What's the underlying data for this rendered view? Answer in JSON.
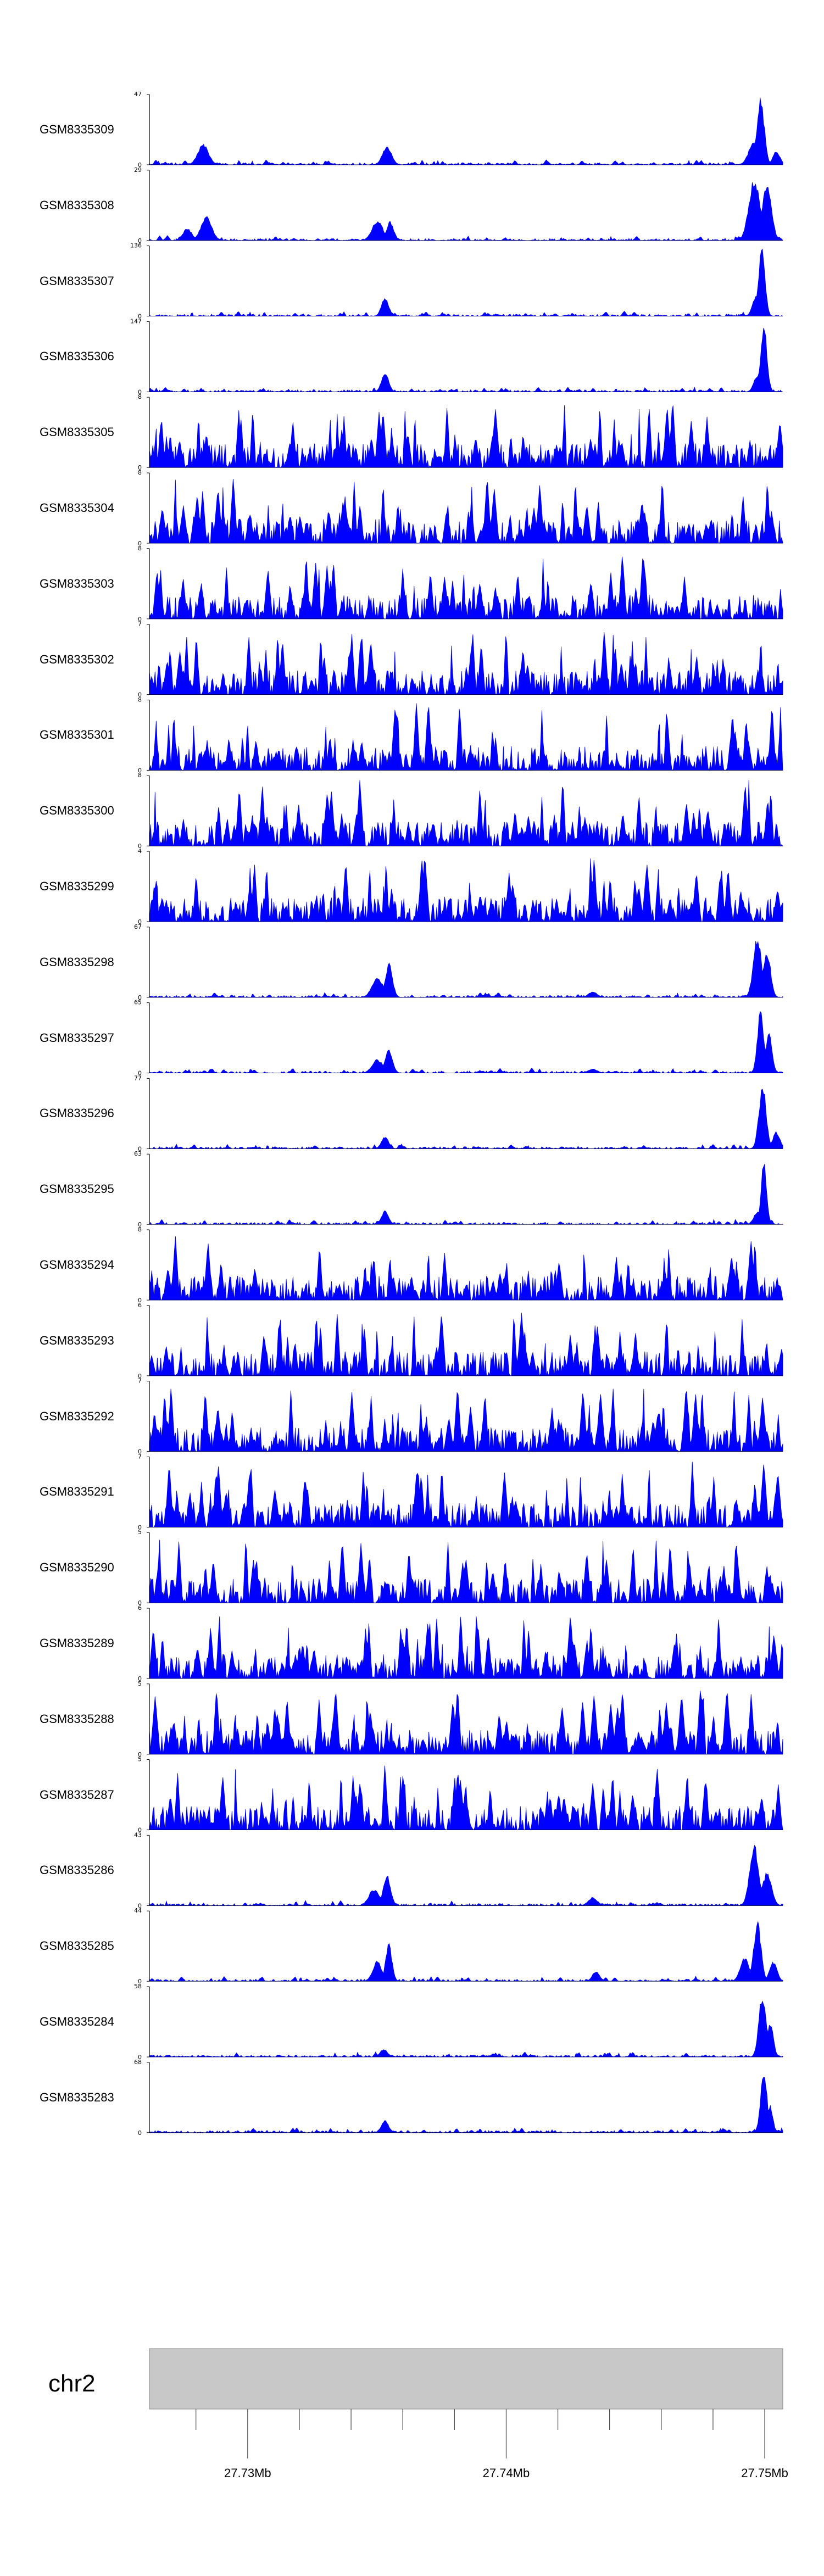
{
  "chart_data": {
    "type": "area",
    "chromosome": "chr2",
    "x_range_mb": [
      27.7262,
      27.7507
    ],
    "axis_ticks_mb": [
      27.73,
      27.74,
      27.75
    ],
    "axis_tick_labels": [
      "27.73Mb",
      "27.74Mb",
      "27.75Mb"
    ],
    "fill_color": "#0000ff",
    "ideogram_color": "#c8c8c8",
    "tracks": [
      {
        "name": "GSM8335309",
        "ymax": "47",
        "ymin": "0",
        "profile": "peaky",
        "seed": 9,
        "peaks": [
          [
            0.085,
            0.3,
            0.012
          ],
          [
            0.375,
            0.28,
            0.01
          ],
          [
            0.965,
            1.0,
            0.008
          ],
          [
            0.955,
            0.35,
            0.012
          ],
          [
            0.99,
            0.2,
            0.008
          ]
        ]
      },
      {
        "name": "GSM8335308",
        "ymax": "29",
        "ymin": "0",
        "profile": "peaky",
        "seed": 8,
        "peaks": [
          [
            0.09,
            0.35,
            0.012
          ],
          [
            0.06,
            0.18,
            0.01
          ],
          [
            0.36,
            0.3,
            0.012
          ],
          [
            0.38,
            0.28,
            0.008
          ],
          [
            0.955,
            0.95,
            0.012
          ],
          [
            0.975,
            0.85,
            0.01
          ]
        ]
      },
      {
        "name": "GSM8335307",
        "ymax": "136",
        "ymin": "0",
        "profile": "clean",
        "seed": 7,
        "peaks": [
          [
            0.372,
            0.27,
            0.008
          ],
          [
            0.967,
            1.0,
            0.007
          ],
          [
            0.958,
            0.3,
            0.008
          ]
        ]
      },
      {
        "name": "GSM8335306",
        "ymax": "147",
        "ymin": "0",
        "profile": "clean",
        "seed": 6,
        "peaks": [
          [
            0.372,
            0.28,
            0.008
          ],
          [
            0.97,
            1.0,
            0.007
          ],
          [
            0.96,
            0.25,
            0.008
          ]
        ]
      },
      {
        "name": "GSM8335305",
        "ymax": "8",
        "ymin": "0",
        "profile": "noisy",
        "seed": 305,
        "peaks": []
      },
      {
        "name": "GSM8335304",
        "ymax": "8",
        "ymin": "0",
        "profile": "noisy",
        "seed": 304,
        "peaks": []
      },
      {
        "name": "GSM8335303",
        "ymax": "8",
        "ymin": "0",
        "profile": "noisy",
        "seed": 303,
        "peaks": []
      },
      {
        "name": "GSM8335302",
        "ymax": "7",
        "ymin": "0",
        "profile": "noisy",
        "seed": 302,
        "peaks": []
      },
      {
        "name": "GSM8335301",
        "ymax": "8",
        "ymin": "0",
        "profile": "noisy",
        "seed": 301,
        "peaks": []
      },
      {
        "name": "GSM8335300",
        "ymax": "8",
        "ymin": "0",
        "profile": "noisy",
        "seed": 300,
        "peaks": []
      },
      {
        "name": "GSM8335299",
        "ymax": "4",
        "ymin": "0",
        "profile": "noisy",
        "seed": 299,
        "peaks": []
      },
      {
        "name": "GSM8335298",
        "ymax": "67",
        "ymin": "0",
        "profile": "clean",
        "seed": 298,
        "peaks": [
          [
            0.36,
            0.3,
            0.012
          ],
          [
            0.378,
            0.5,
            0.008
          ],
          [
            0.7,
            0.08,
            0.01
          ],
          [
            0.96,
            0.9,
            0.009
          ],
          [
            0.975,
            0.7,
            0.008
          ]
        ]
      },
      {
        "name": "GSM8335297",
        "ymax": "65",
        "ymin": "0",
        "profile": "clean",
        "seed": 297,
        "peaks": [
          [
            0.36,
            0.2,
            0.012
          ],
          [
            0.378,
            0.35,
            0.008
          ],
          [
            0.7,
            0.06,
            0.01
          ],
          [
            0.965,
            0.95,
            0.007
          ],
          [
            0.978,
            0.6,
            0.007
          ]
        ]
      },
      {
        "name": "GSM8335296",
        "ymax": "77",
        "ymin": "0",
        "profile": "clean",
        "seed": 296,
        "peaks": [
          [
            0.372,
            0.18,
            0.008
          ],
          [
            0.968,
            0.95,
            0.008
          ],
          [
            0.99,
            0.25,
            0.008
          ]
        ]
      },
      {
        "name": "GSM8335295",
        "ymax": "63",
        "ymin": "0",
        "profile": "clean",
        "seed": 295,
        "peaks": [
          [
            0.372,
            0.2,
            0.008
          ],
          [
            0.97,
            0.95,
            0.006
          ],
          [
            0.96,
            0.2,
            0.008
          ]
        ]
      },
      {
        "name": "GSM8335294",
        "ymax": "8",
        "ymin": "0",
        "profile": "noisy",
        "seed": 294,
        "peaks": []
      },
      {
        "name": "GSM8335293",
        "ymax": "6",
        "ymin": "0",
        "profile": "noisy",
        "seed": 293,
        "peaks": []
      },
      {
        "name": "GSM8335292",
        "ymax": "7",
        "ymin": "0",
        "profile": "noisy",
        "seed": 292,
        "peaks": []
      },
      {
        "name": "GSM8335291",
        "ymax": "7",
        "ymin": "0",
        "profile": "noisy",
        "seed": 291,
        "peaks": []
      },
      {
        "name": "GSM8335290",
        "ymax": "5",
        "ymin": "0",
        "profile": "noisy",
        "seed": 290,
        "peaks": []
      },
      {
        "name": "GSM8335289",
        "ymax": "6",
        "ymin": "0",
        "profile": "noisy",
        "seed": 289,
        "peaks": []
      },
      {
        "name": "GSM8335288",
        "ymax": "5",
        "ymin": "0",
        "profile": "noisy",
        "seed": 288,
        "peaks": []
      },
      {
        "name": "GSM8335287",
        "ymax": "5",
        "ymin": "0",
        "profile": "noisy",
        "seed": 287,
        "peaks": []
      },
      {
        "name": "GSM8335286",
        "ymax": "43",
        "ymin": "0",
        "profile": "clean",
        "seed": 286,
        "peaks": [
          [
            0.355,
            0.25,
            0.012
          ],
          [
            0.375,
            0.45,
            0.008
          ],
          [
            0.7,
            0.12,
            0.01
          ],
          [
            0.955,
            0.9,
            0.01
          ],
          [
            0.975,
            0.5,
            0.01
          ]
        ]
      },
      {
        "name": "GSM8335285",
        "ymax": "44",
        "ymin": "0",
        "profile": "clean",
        "seed": 285,
        "peaks": [
          [
            0.36,
            0.3,
            0.01
          ],
          [
            0.378,
            0.55,
            0.007
          ],
          [
            0.705,
            0.15,
            0.008
          ],
          [
            0.96,
            0.9,
            0.008
          ],
          [
            0.94,
            0.35,
            0.01
          ],
          [
            0.985,
            0.3,
            0.008
          ]
        ]
      },
      {
        "name": "GSM8335284",
        "ymax": "58",
        "ymin": "0",
        "profile": "clean",
        "seed": 284,
        "peaks": [
          [
            0.37,
            0.12,
            0.008
          ],
          [
            0.968,
            0.95,
            0.008
          ],
          [
            0.98,
            0.5,
            0.007
          ]
        ]
      },
      {
        "name": "GSM8335283",
        "ymax": "68",
        "ymin": "0",
        "profile": "clean",
        "seed": 283,
        "peaks": [
          [
            0.372,
            0.18,
            0.008
          ],
          [
            0.97,
            0.95,
            0.007
          ],
          [
            0.98,
            0.4,
            0.006
          ]
        ]
      }
    ]
  }
}
